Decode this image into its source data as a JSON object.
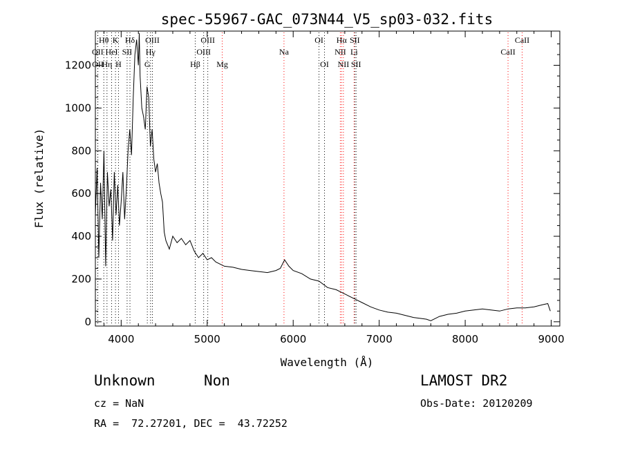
{
  "chart_data": {
    "type": "line",
    "title": "spec-55967-GAC_073N44_V5_sp03-032.fits",
    "xlabel": "Wavelength (Å)",
    "ylabel": "Flux (relative)",
    "xlim": [
      3700,
      9100
    ],
    "ylim": [
      -20,
      1360
    ],
    "xticks": [
      4000,
      5000,
      6000,
      7000,
      8000,
      9000
    ],
    "yticks": [
      0,
      200,
      400,
      600,
      800,
      1000,
      1200
    ],
    "grid": false,
    "series": [
      {
        "color": "#000000",
        "x": [
          3700,
          3720,
          3740,
          3760,
          3780,
          3800,
          3820,
          3840,
          3860,
          3880,
          3900,
          3920,
          3940,
          3960,
          3980,
          4000,
          4020,
          4040,
          4060,
          4080,
          4100,
          4120,
          4140,
          4160,
          4180,
          4200,
          4210,
          4220,
          4240,
          4260,
          4280,
          4300,
          4320,
          4340,
          4360,
          4380,
          4400,
          4420,
          4440,
          4460,
          4480,
          4500,
          4520,
          4540,
          4560,
          4600,
          4650,
          4700,
          4750,
          4800,
          4850,
          4900,
          4950,
          5000,
          5050,
          5100,
          5150,
          5200,
          5300,
          5400,
          5500,
          5600,
          5700,
          5800,
          5850,
          5900,
          5950,
          6000,
          6100,
          6200,
          6300,
          6400,
          6500,
          6600,
          6700,
          6800,
          6900,
          7000,
          7100,
          7200,
          7300,
          7400,
          7500,
          7550,
          7600,
          7650,
          7700,
          7800,
          7900,
          8000,
          8100,
          8200,
          8300,
          8400,
          8500,
          8600,
          8700,
          8800,
          8900,
          8960,
          8990
        ],
        "y": [
          500,
          720,
          300,
          650,
          480,
          800,
          260,
          700,
          540,
          620,
          380,
          700,
          500,
          640,
          450,
          560,
          700,
          480,
          620,
          800,
          900,
          780,
          1050,
          1250,
          1320,
          1200,
          1350,
          1150,
          1000,
          960,
          900,
          1100,
          1050,
          820,
          900,
          760,
          700,
          740,
          650,
          600,
          560,
          420,
          380,
          360,
          340,
          400,
          370,
          390,
          360,
          380,
          330,
          300,
          320,
          290,
          300,
          280,
          270,
          260,
          255,
          245,
          240,
          235,
          230,
          240,
          250,
          290,
          260,
          240,
          225,
          200,
          190,
          160,
          150,
          130,
          110,
          90,
          70,
          55,
          45,
          40,
          30,
          20,
          15,
          12,
          5,
          15,
          25,
          35,
          40,
          50,
          55,
          60,
          55,
          50,
          60,
          65,
          65,
          70,
          80,
          85,
          50
        ]
      }
    ]
  },
  "spectral_lines": [
    {
      "label": "Hθ",
      "wl": 3798,
      "row": 0,
      "color": "#000000"
    },
    {
      "label": "K",
      "wl": 3934,
      "row": 0,
      "color": "#000000"
    },
    {
      "label": "Hδ",
      "wl": 4102,
      "row": 0,
      "color": "#000000"
    },
    {
      "label": "OIII",
      "wl": 4363,
      "row": 0,
      "color": "#000000"
    },
    {
      "label": "OIII",
      "wl": 5007,
      "row": 0,
      "color": "#000000"
    },
    {
      "label": "OI",
      "wl": 6300,
      "row": 0,
      "color": "#000000"
    },
    {
      "label": "Hα",
      "wl": 6563,
      "row": 0,
      "color": "#ff0000"
    },
    {
      "label": "SII",
      "wl": 6716,
      "row": 0,
      "color": "#000000"
    },
    {
      "label": "CaII",
      "wl": 8662,
      "row": 0,
      "color": "#ff0000"
    },
    {
      "label": "OII",
      "wl": 3727,
      "row": 1,
      "color": "#000000"
    },
    {
      "label": "HeI",
      "wl": 3889,
      "row": 1,
      "color": "#000000"
    },
    {
      "label": "SII",
      "wl": 4069,
      "row": 1,
      "color": "#000000"
    },
    {
      "label": "Hγ",
      "wl": 4341,
      "row": 1,
      "color": "#000000"
    },
    {
      "label": "OIII",
      "wl": 4959,
      "row": 1,
      "color": "#000000"
    },
    {
      "label": "Na",
      "wl": 5893,
      "row": 1,
      "color": "#ff0000"
    },
    {
      "label": "NII",
      "wl": 6548,
      "row": 1,
      "color": "#ff0000"
    },
    {
      "label": "Li",
      "wl": 6708,
      "row": 1,
      "color": "#ff0000"
    },
    {
      "label": "CaII",
      "wl": 8498,
      "row": 1,
      "color": "#ff0000"
    },
    {
      "label": "OII",
      "wl": 3729,
      "row": 2,
      "color": "#000000"
    },
    {
      "label": "Hη",
      "wl": 3835,
      "row": 2,
      "color": "#000000"
    },
    {
      "label": "H",
      "wl": 3969,
      "row": 2,
      "color": "#000000"
    },
    {
      "label": "G",
      "wl": 4304,
      "row": 2,
      "color": "#000000"
    },
    {
      "label": "Hβ",
      "wl": 4861,
      "row": 2,
      "color": "#000000"
    },
    {
      "label": "Mg",
      "wl": 5175,
      "row": 2,
      "color": "#ff0000"
    },
    {
      "label": "OI",
      "wl": 6364,
      "row": 2,
      "color": "#000000"
    },
    {
      "label": "NII",
      "wl": 6584,
      "row": 2,
      "color": "#ff0000"
    },
    {
      "label": "SII",
      "wl": 6731,
      "row": 2,
      "color": "#000000"
    }
  ],
  "info": {
    "classification": "Unknown",
    "subclass": "Non",
    "survey": "LAMOST DR2",
    "redshift_text": "cz = NaN",
    "obs_date_text": "Obs-Date: 20120209",
    "coords_text": "RA =  72.27201, DEC =  43.72252"
  }
}
